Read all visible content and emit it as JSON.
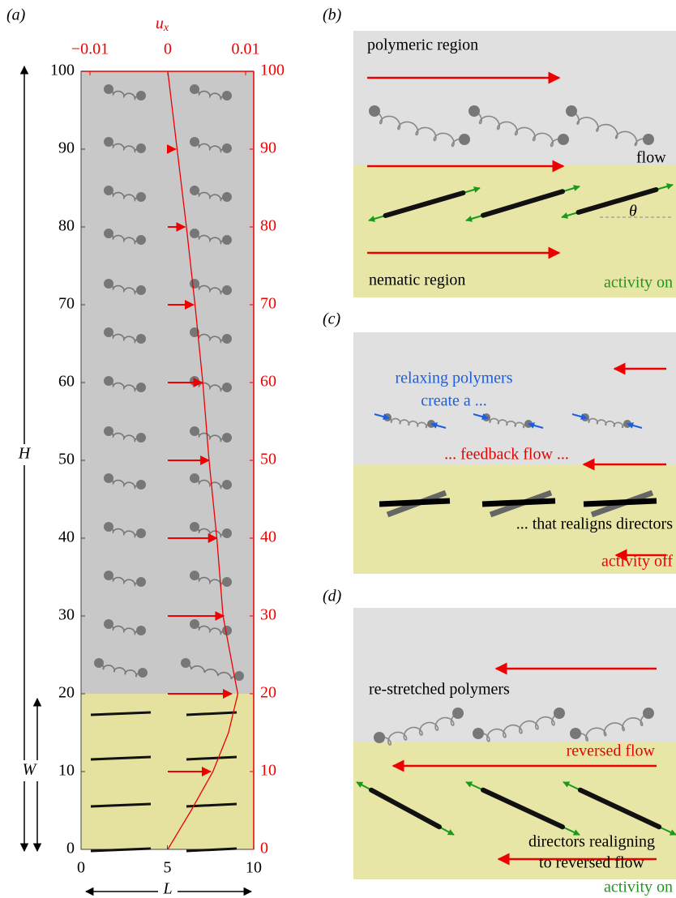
{
  "panel_a": {
    "label": "(a)",
    "top_axis_label": "u",
    "top_axis_sub": "x",
    "top_ticks": [
      {
        "value": -0.01,
        "label": "−0.01"
      },
      0,
      0.01
    ],
    "ulim": [
      -0.01,
      0.01
    ],
    "left_ticks": [
      0,
      10,
      20,
      30,
      40,
      50,
      60,
      70,
      80,
      90,
      100
    ],
    "ylim": [
      0,
      100
    ],
    "right_ticks": [
      0,
      10,
      20,
      30,
      40,
      50,
      60,
      70,
      80,
      90,
      100
    ],
    "bottom_ticks": [
      0,
      5,
      10
    ],
    "xlim": [
      0,
      10
    ],
    "H": "H",
    "W": "W",
    "L": "L",
    "profile": {
      "y": [
        0,
        5,
        10,
        15,
        20,
        22,
        30,
        40,
        50,
        60,
        70,
        80,
        90,
        100
      ],
      "ux": [
        0,
        0.003,
        0.0058,
        0.0078,
        0.009,
        0.0086,
        0.0071,
        0.0063,
        0.0053,
        0.0045,
        0.0035,
        0.0024,
        0.0012,
        0
      ]
    },
    "arrows": {
      "y": [
        10,
        20,
        30,
        40,
        50,
        60,
        70,
        80,
        90
      ],
      "ux": [
        0.0055,
        0.0082,
        0.0072,
        0.0063,
        0.0053,
        0.0044,
        0.0033,
        0.0022,
        0.001
      ]
    }
  },
  "panel_b": {
    "label": "(b)",
    "polymeric": "polymeric region",
    "flow": "flow",
    "nematic": "nematic region",
    "activity": "activity on",
    "theta": "θ"
  },
  "panel_c": {
    "label": "(c)",
    "relaxing": "relaxing polymers",
    "create": "create a ...",
    "feedback": "... feedback flow ...",
    "realigns": "... that realigns directors",
    "activity": "activity off"
  },
  "panel_d": {
    "label": "(d)",
    "restretched": "re-stretched polymers",
    "reversed": "reversed flow",
    "realigning": "directors realigning",
    "to_reversed": "to reversed flow",
    "activity": "activity on"
  }
}
